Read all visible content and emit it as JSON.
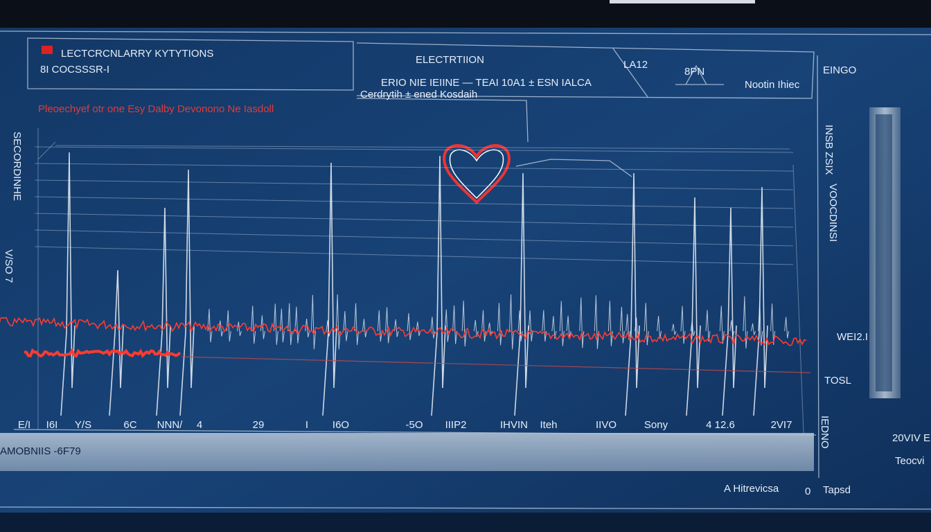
{
  "header": {
    "title": "LECTCRCNLARRY KYTYTIONS",
    "subtitle": "8I COCSSSR-I",
    "center_title": "ELECTRTIION",
    "center_line": "ERIO NIE IEIINE — TEAI 10A1 ± ESN IALCA",
    "center_sub": "Cerdrytih ± ened Kosdaih",
    "lead": "LA12",
    "bpm": "8PN",
    "note": "Nootin Ihiec",
    "side_title": "EINGO"
  },
  "alert": "Pleoechyef otr one Esy Dalby Devonono Ne Iasdoll",
  "axis_labels": [
    "E/I",
    "I6I",
    "Y/S",
    "6C",
    "NNN/",
    "4",
    "29",
    "I",
    "I6O",
    "-5O",
    "IIIP2",
    "IHVIN",
    "Iteh",
    "IIVO",
    "Sony",
    "4 12.6",
    "2VI7"
  ],
  "status_bar": "AMOBNIIS -6F79",
  "footer": [
    "A Hitrevicsa",
    "0",
    "Tapsd"
  ],
  "side_panel": {
    "vertical_1": "INSB ZSIX",
    "vertical_2": "VOOCDINSI",
    "label_1": "WEI2.I",
    "label_2": "TOSL",
    "label_3": "20VIV E",
    "label_4": "Teocvi",
    "vertical_3": "IEDNO"
  },
  "left_vertical": [
    "SECORDINHE",
    "V/SO 7"
  ]
}
